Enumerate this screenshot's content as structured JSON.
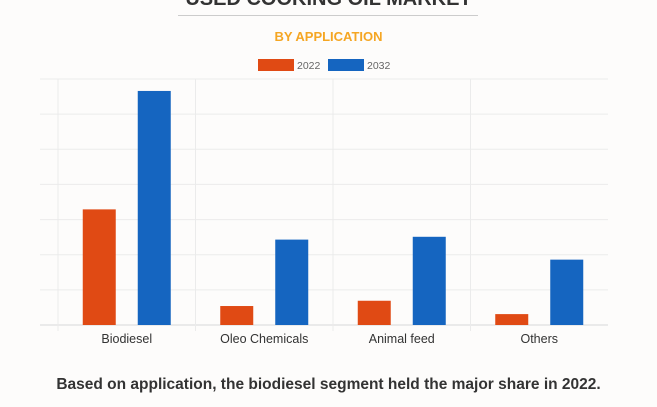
{
  "chart_data": {
    "type": "bar",
    "title": "USED COOKING OIL MARKET",
    "subtitle": "BY APPLICATION",
    "categories": [
      "Biodiesel",
      "Oleo Chemicals",
      "Animal feed",
      "Others"
    ],
    "series": [
      {
        "name": "2022",
        "color": "#e04a14",
        "values": [
          3.29,
          0.54,
          0.69,
          0.31
        ]
      },
      {
        "name": "2032",
        "color": "#1565c0",
        "values": [
          6.66,
          2.43,
          2.51,
          1.86
        ]
      }
    ],
    "ylim": [
      0,
      7
    ],
    "y_ticks_labeled": false,
    "grid": true,
    "legend": "top-center"
  },
  "caption": "Based on application, the biodiesel segment held the major share in 2022."
}
